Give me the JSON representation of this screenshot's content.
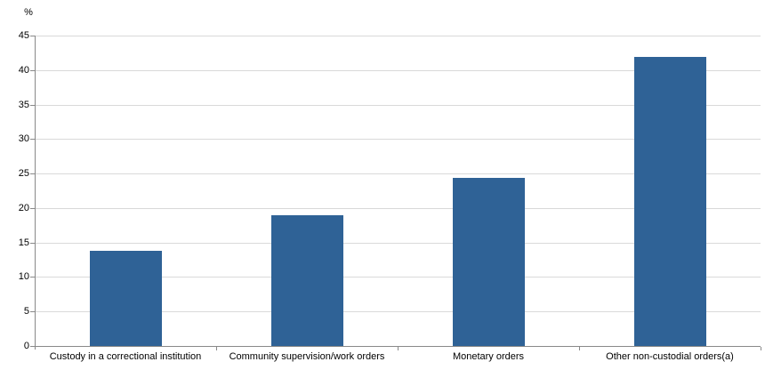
{
  "chart_data": {
    "type": "bar",
    "title": "",
    "xlabel": "",
    "ylabel": "%",
    "categories": [
      "Custody in a correctional institution",
      "Community supervision/work orders",
      "Monetary orders",
      "Other non-custodial orders(a)"
    ],
    "values": [
      13.8,
      18.9,
      24.4,
      41.9
    ],
    "ylim": [
      0,
      45
    ],
    "ytick_step": 5,
    "grid": true,
    "legend": "none",
    "colors": {
      "bar": "#2f6296",
      "gridline": "#d9d9d9",
      "axis": "#898989",
      "text": "#000000",
      "background": "#ffffff"
    }
  }
}
